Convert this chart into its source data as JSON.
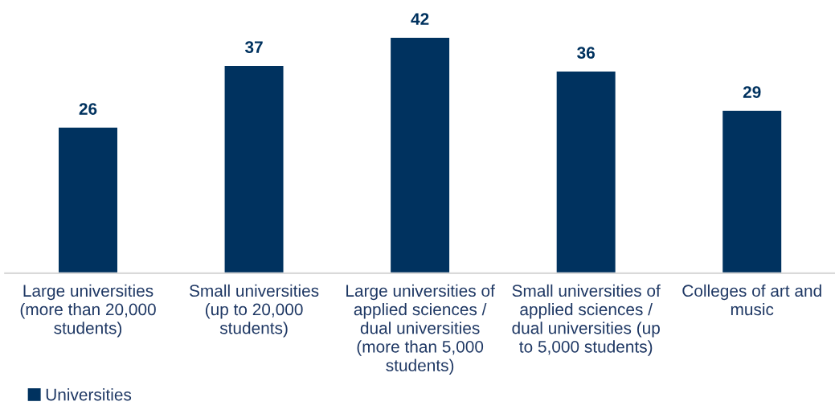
{
  "chart_data": {
    "type": "bar",
    "categories": [
      "Large universities (more than 20,000 students)",
      "Small universities (up to 20,000 students)",
      "Large universities of applied sciences / dual universities (more than 5,000 students)",
      "Small universities of applied sciences / dual universities (up to 5,000 students)",
      "Colleges of art and music"
    ],
    "series": [
      {
        "name": "Universities",
        "color": "#00325f",
        "values": [
          26,
          37,
          42,
          36,
          29
        ]
      }
    ],
    "data_labels": true,
    "legend": "bottom left"
  }
}
